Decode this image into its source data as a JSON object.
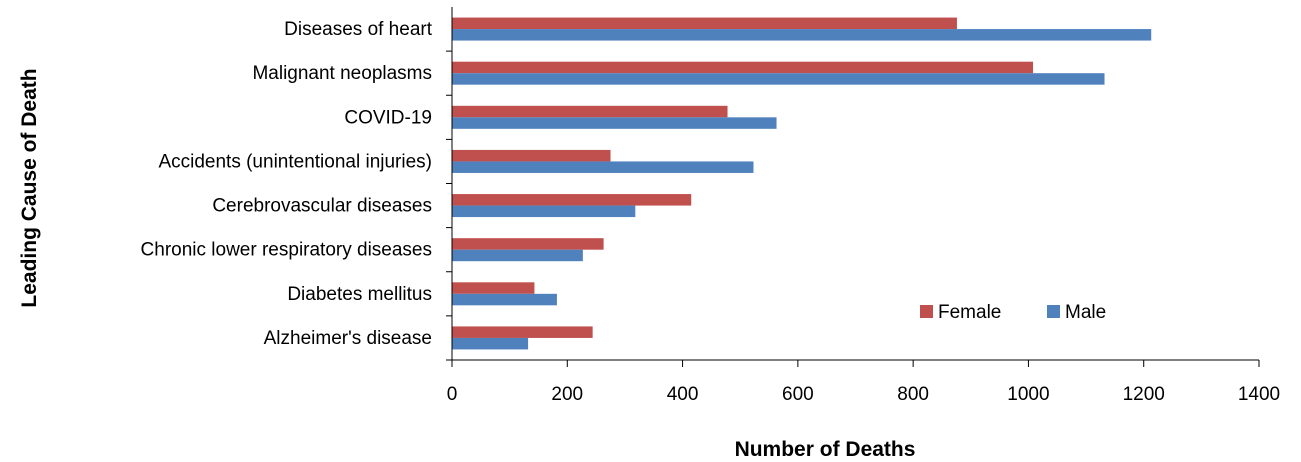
{
  "chart_data": {
    "type": "bar",
    "orientation": "horizontal",
    "categories": [
      "Diseases of heart",
      "Malignant neoplasms",
      "COVID-19",
      "Accidents (unintentional injuries)",
      "Cerebrovascular diseases",
      "Chronic lower respiratory diseases",
      "Diabetes mellitus",
      "Alzheimer's disease"
    ],
    "series": [
      {
        "name": "Female",
        "color": "#c0504d",
        "values": [
          876,
          1008,
          478,
          275,
          415,
          263,
          143,
          244
        ]
      },
      {
        "name": "Male",
        "color": "#4f81bd",
        "values": [
          1213,
          1132,
          563,
          523,
          318,
          227,
          182,
          132
        ]
      }
    ],
    "xlabel": "Number of Deaths",
    "ylabel": "Leading Cause of Death",
    "xlim": [
      0,
      1400
    ],
    "xticks": [
      "0",
      "200",
      "400",
      "600",
      "800",
      "1000",
      "1200",
      "1400"
    ],
    "grid": false,
    "legend_position": "bottom-right"
  }
}
